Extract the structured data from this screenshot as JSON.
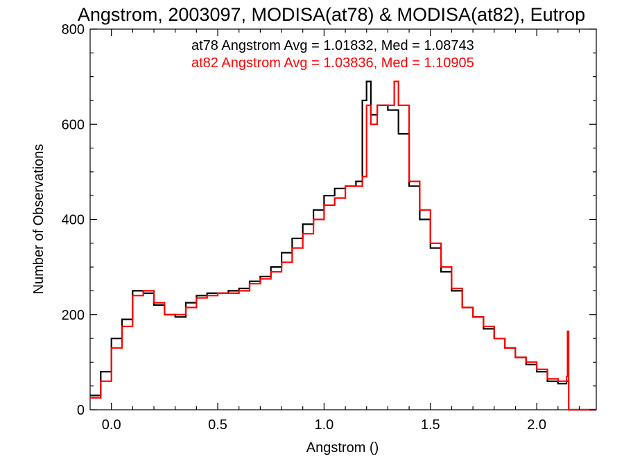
{
  "chart_data": {
    "type": "line",
    "title": "Angstrom, 2003097, MODISA(at78) & MODISA(at82), Eutrop",
    "xlabel": "Angstrom ()",
    "ylabel": "Number of Observations",
    "xlim": [
      -0.1,
      2.28
    ],
    "ylim": [
      0,
      800
    ],
    "xticks": [
      0.0,
      0.5,
      1.0,
      1.5,
      2.0
    ],
    "xtick_labels": [
      "0.0",
      "0.5",
      "1.0",
      "1.5",
      "2.0"
    ],
    "yticks": [
      0,
      200,
      400,
      600,
      800
    ],
    "ytick_labels": [
      "0",
      "200",
      "400",
      "600",
      "800"
    ],
    "grid": false,
    "legend_position": "top-right",
    "legend": [
      {
        "text": "at78 Angstrom Avg = 1.01832, Med = 1.08743",
        "color": "#000000"
      },
      {
        "text": "at82 Angstrom Avg = 1.03836, Med = 1.10905",
        "color": "#ff0000"
      }
    ],
    "series": [
      {
        "color": "#000000",
        "x": [
          -0.1,
          -0.05,
          0.0,
          0.05,
          0.1,
          0.15,
          0.2,
          0.25,
          0.3,
          0.35,
          0.4,
          0.45,
          0.5,
          0.55,
          0.6,
          0.65,
          0.7,
          0.75,
          0.8,
          0.85,
          0.9,
          0.95,
          1.0,
          1.05,
          1.1,
          1.15,
          1.18,
          1.2,
          1.22,
          1.25,
          1.3,
          1.35,
          1.4,
          1.45,
          1.5,
          1.55,
          1.6,
          1.65,
          1.7,
          1.75,
          1.8,
          1.85,
          1.9,
          1.95,
          2.0,
          2.05,
          2.1,
          2.14,
          2.15,
          2.28
        ],
        "y": [
          30,
          80,
          150,
          190,
          250,
          245,
          220,
          200,
          195,
          225,
          240,
          245,
          245,
          250,
          255,
          270,
          280,
          300,
          330,
          360,
          390,
          420,
          450,
          465,
          470,
          480,
          650,
          690,
          620,
          640,
          630,
          580,
          470,
          400,
          340,
          290,
          250,
          215,
          195,
          170,
          150,
          130,
          110,
          95,
          80,
          60,
          55,
          60,
          0,
          0
        ]
      },
      {
        "color": "#ff0000",
        "x": [
          -0.1,
          -0.05,
          0.0,
          0.05,
          0.1,
          0.15,
          0.2,
          0.25,
          0.3,
          0.35,
          0.4,
          0.45,
          0.5,
          0.55,
          0.6,
          0.65,
          0.7,
          0.75,
          0.8,
          0.85,
          0.9,
          0.95,
          1.0,
          1.05,
          1.1,
          1.15,
          1.18,
          1.2,
          1.22,
          1.25,
          1.3,
          1.33,
          1.35,
          1.4,
          1.45,
          1.5,
          1.55,
          1.6,
          1.65,
          1.7,
          1.75,
          1.8,
          1.85,
          1.9,
          1.95,
          2.0,
          2.05,
          2.1,
          2.14,
          2.145,
          2.15,
          2.28
        ],
        "y": [
          25,
          60,
          130,
          175,
          240,
          250,
          225,
          200,
          200,
          215,
          235,
          240,
          245,
          245,
          250,
          265,
          275,
          290,
          310,
          340,
          370,
          400,
          430,
          445,
          470,
          470,
          490,
          640,
          600,
          640,
          640,
          690,
          640,
          480,
          420,
          350,
          300,
          255,
          215,
          195,
          175,
          150,
          130,
          110,
          100,
          85,
          65,
          60,
          70,
          165,
          0,
          0
        ]
      }
    ]
  }
}
